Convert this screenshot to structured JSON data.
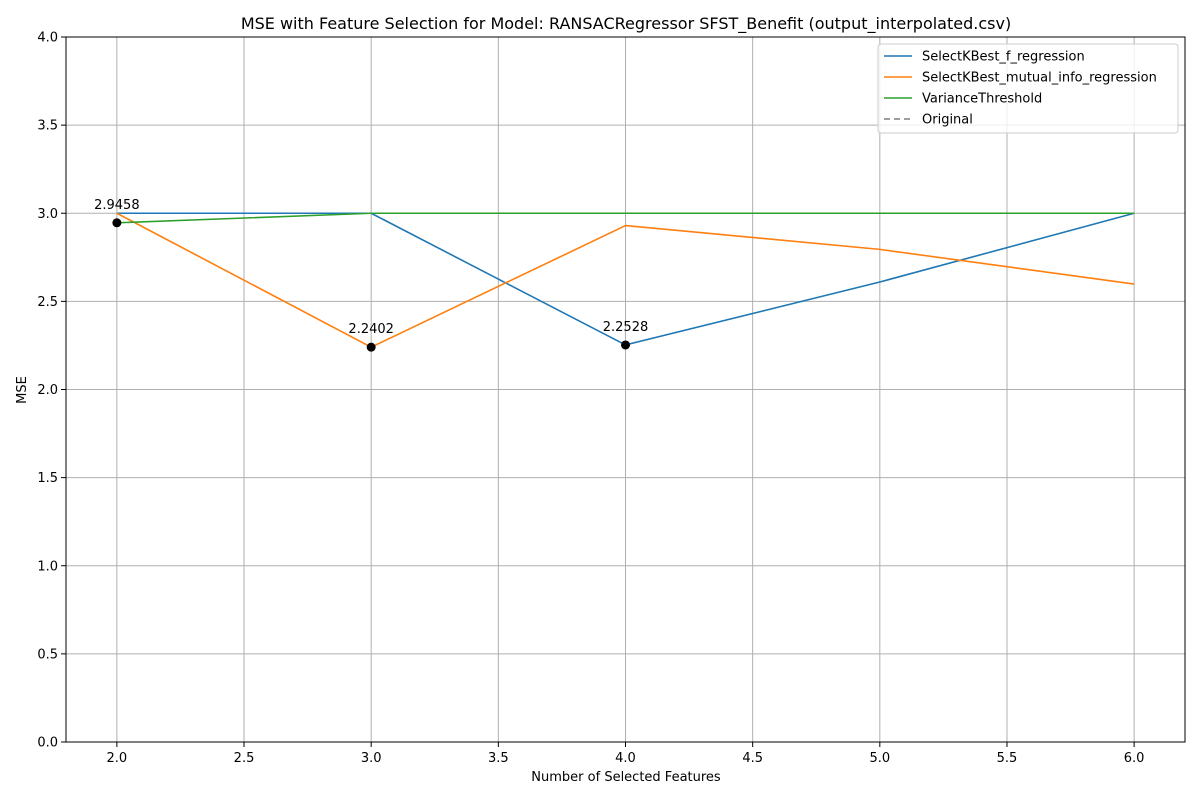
{
  "chart_data": {
    "type": "line",
    "title": "MSE with Feature Selection for Model: RANSACRegressor SFST_Benefit (output_interpolated.csv)",
    "xlabel": "Number of Selected Features",
    "ylabel": "MSE",
    "xlim": [
      1.8,
      6.2
    ],
    "ylim": [
      0.0,
      4.0
    ],
    "xticks": [
      2.0,
      2.5,
      3.0,
      3.5,
      4.0,
      4.5,
      5.0,
      5.5,
      6.0
    ],
    "xtick_labels": [
      "2.0",
      "2.5",
      "3.0",
      "3.5",
      "4.0",
      "4.5",
      "5.0",
      "5.5",
      "6.0"
    ],
    "yticks": [
      0.0,
      0.5,
      1.0,
      1.5,
      2.0,
      2.5,
      3.0,
      3.5,
      4.0
    ],
    "ytick_labels": [
      "0.0",
      "0.5",
      "1.0",
      "1.5",
      "2.0",
      "2.5",
      "3.0",
      "3.5",
      "4.0"
    ],
    "grid": true,
    "legend_position": "top-right",
    "series": [
      {
        "name": "SelectKBest_f_regression",
        "color": "#1f77b4",
        "style": "solid",
        "x": [
          2,
          3,
          4,
          5,
          6
        ],
        "y": [
          3.0,
          3.0,
          2.2528,
          2.61,
          3.0
        ]
      },
      {
        "name": "SelectKBest_mutual_info_regression",
        "color": "#ff7f0e",
        "style": "solid",
        "x": [
          2,
          3,
          4,
          5,
          6
        ],
        "y": [
          3.0,
          2.2402,
          2.93,
          2.795,
          2.598
        ]
      },
      {
        "name": "VarianceThreshold",
        "color": "#2ca02c",
        "style": "solid",
        "x": [
          2,
          3,
          4,
          5,
          6
        ],
        "y": [
          2.9458,
          3.0,
          3.0,
          3.0,
          3.0
        ]
      },
      {
        "name": "Original",
        "color": "#7f7f7f",
        "style": "dashed",
        "x": [],
        "y": []
      }
    ],
    "markers": [
      {
        "x": 2,
        "y": 2.9458,
        "label": "2.9458"
      },
      {
        "x": 3,
        "y": 2.2402,
        "label": "2.2402"
      },
      {
        "x": 4,
        "y": 2.2528,
        "label": "2.2528"
      }
    ]
  }
}
